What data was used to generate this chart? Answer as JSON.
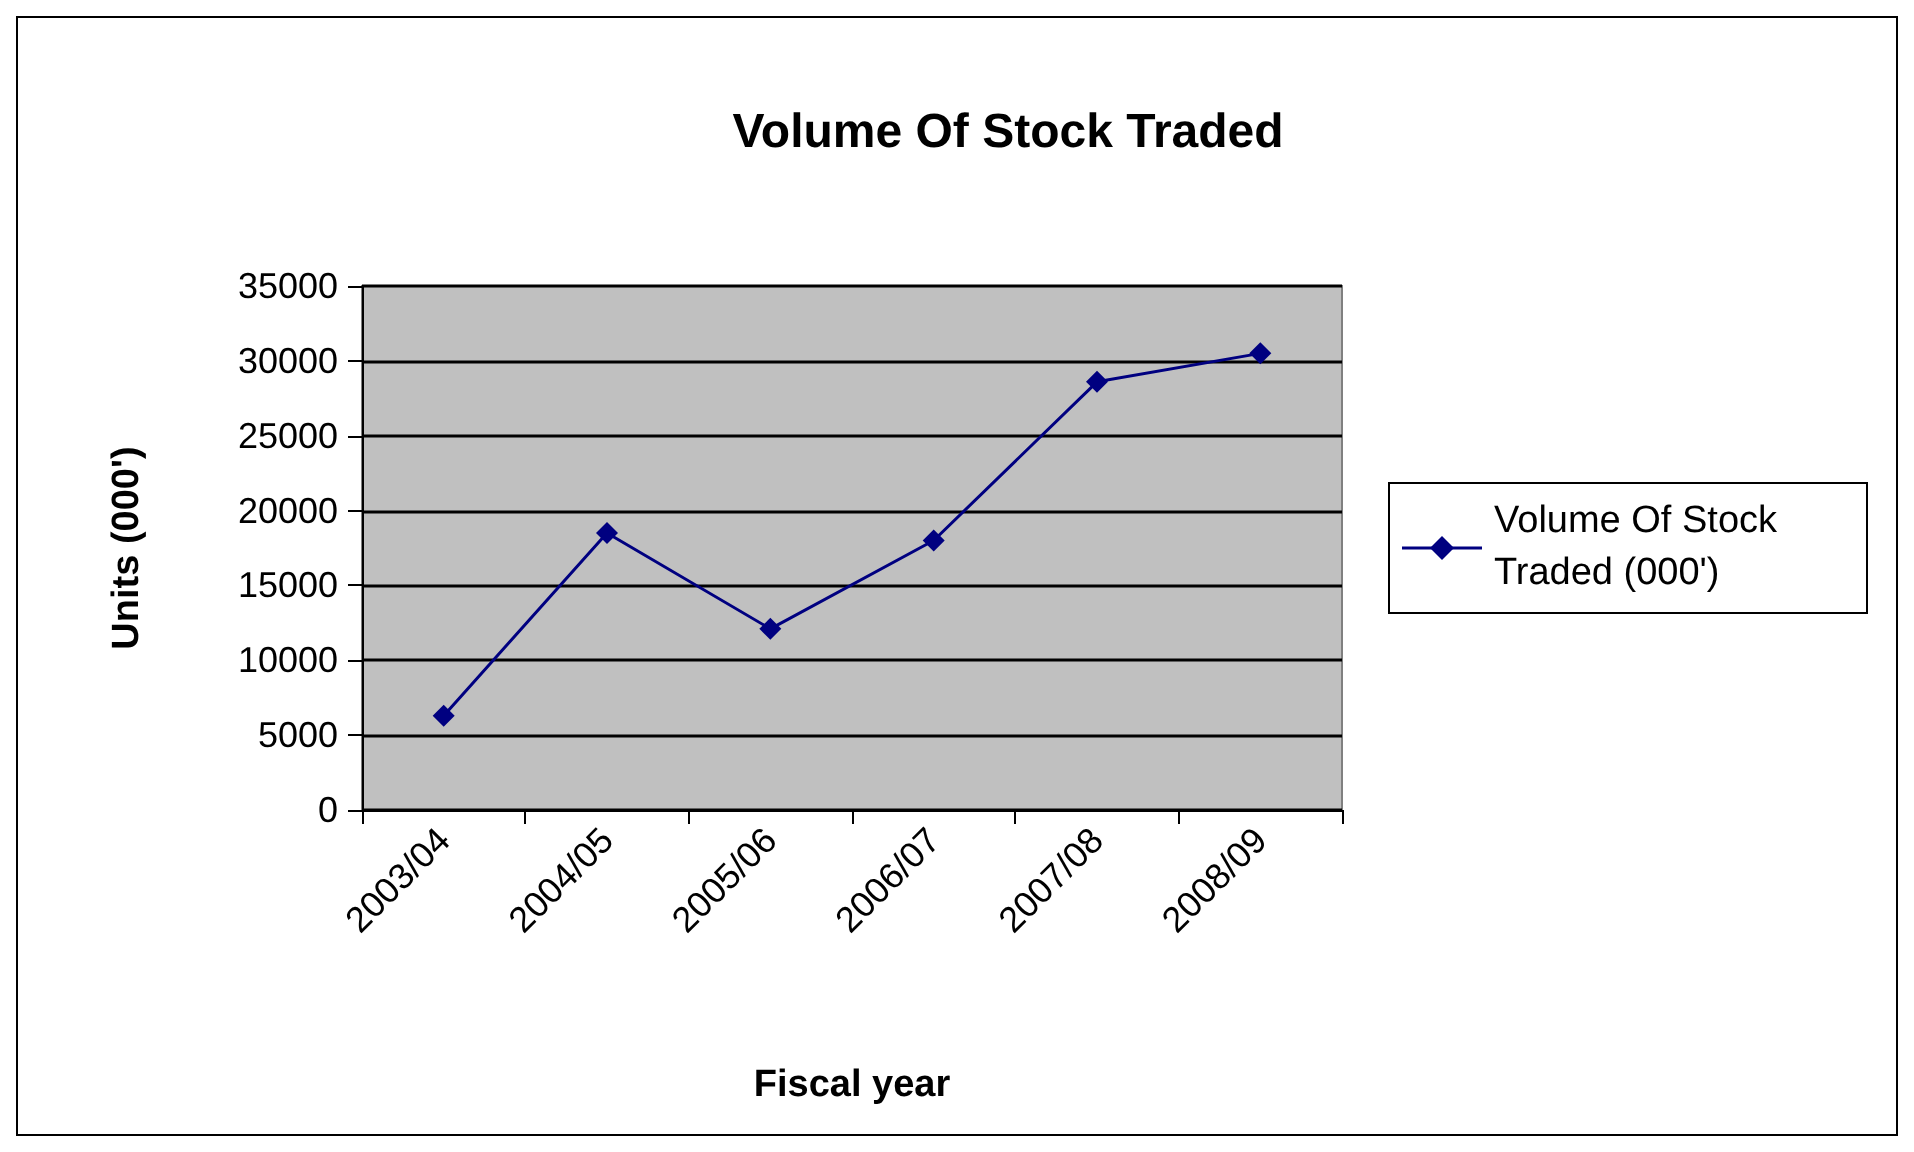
{
  "chart_data": {
    "type": "line",
    "title": "Volume Of Stock Traded",
    "xlabel": "Fiscal year",
    "ylabel": "Units (000')",
    "categories": [
      "2003/04",
      "2004/05",
      "2005/06",
      "2006/07",
      "2007/08",
      "2008/09"
    ],
    "series": [
      {
        "name": "Volume Of Stock Traded (000')",
        "color": "#000080",
        "values": [
          6300,
          18500,
          12100,
          18000,
          28600,
          30500
        ]
      }
    ],
    "ylim": [
      0,
      35000
    ],
    "yticks": [
      0,
      5000,
      10000,
      15000,
      20000,
      25000,
      30000,
      35000
    ],
    "grid": "y",
    "legend": "right",
    "marker": "diamond",
    "line_style": "solid"
  }
}
